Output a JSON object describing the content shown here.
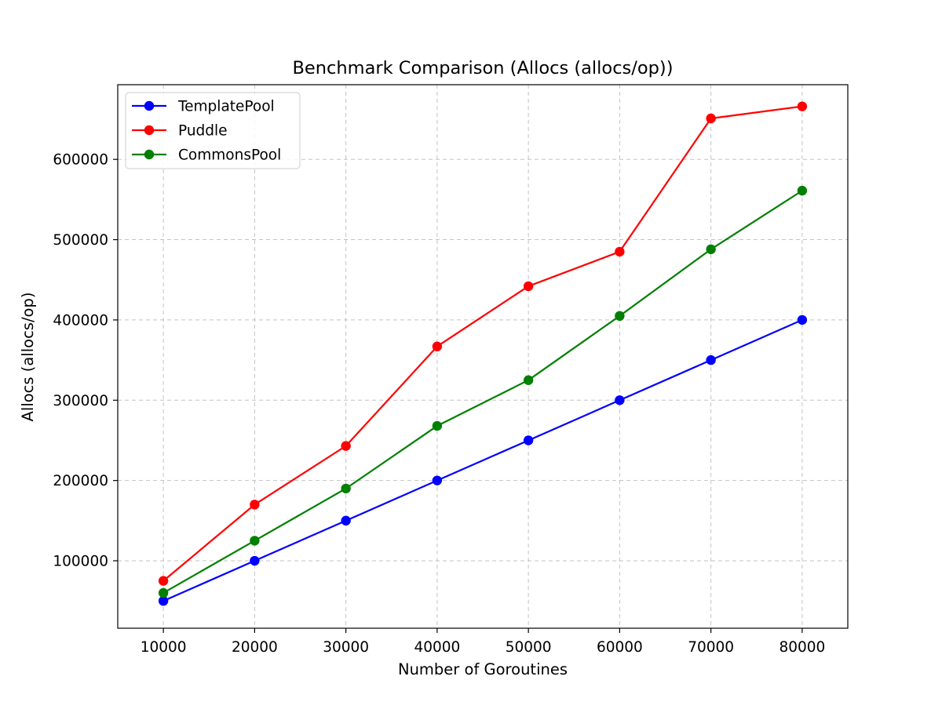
{
  "chart_data": {
    "type": "line",
    "title": "Benchmark Comparison (Allocs (allocs/op))",
    "xlabel": "Number of Goroutines",
    "ylabel": "Allocs (allocs/op)",
    "x": [
      10000,
      20000,
      30000,
      40000,
      50000,
      60000,
      70000,
      80000
    ],
    "xticks": [
      "10000",
      "20000",
      "30000",
      "40000",
      "50000",
      "60000",
      "70000",
      "80000"
    ],
    "yticks": [
      "100000",
      "200000",
      "300000",
      "400000",
      "500000",
      "600000"
    ],
    "yticks_values": [
      100000,
      200000,
      300000,
      400000,
      500000,
      600000
    ],
    "xlim": [
      5000,
      85000
    ],
    "ylim": [
      16000,
      693000
    ],
    "grid": true,
    "legend_position": "upper left",
    "series": [
      {
        "name": "TemplatePool",
        "color": "#0000ff",
        "marker": "circle",
        "values": [
          50000,
          100000,
          150000,
          200000,
          250000,
          300000,
          350000,
          400000
        ]
      },
      {
        "name": "Puddle",
        "color": "#ff0000",
        "marker": "circle",
        "values": [
          75000,
          170000,
          243000,
          367000,
          442000,
          485000,
          651000,
          666000
        ]
      },
      {
        "name": "CommonsPool",
        "color": "#008000",
        "marker": "circle",
        "values": [
          60000,
          125000,
          190000,
          268000,
          325000,
          405000,
          488000,
          561000
        ]
      }
    ]
  }
}
